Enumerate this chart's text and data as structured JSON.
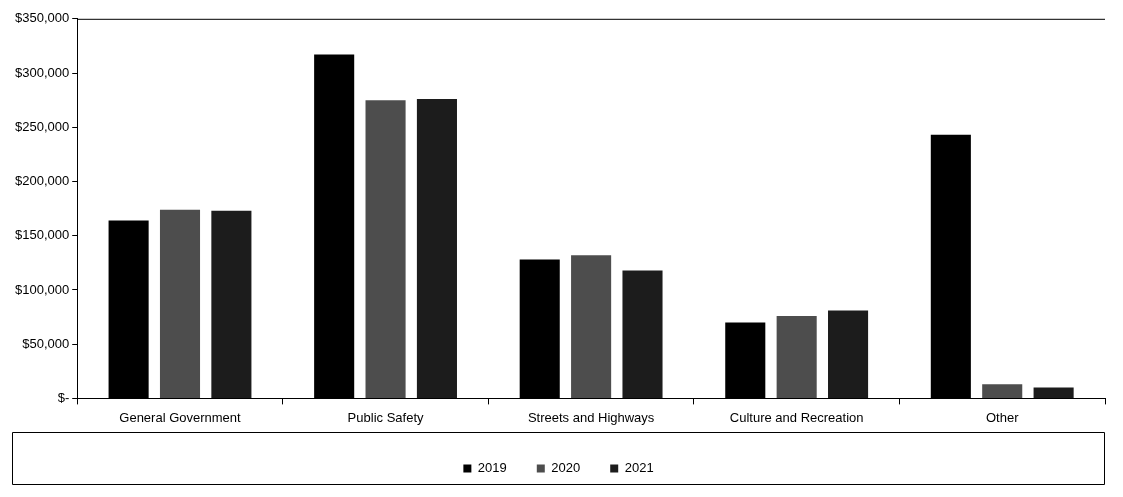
{
  "chart_data": {
    "type": "bar",
    "categories": [
      "General Government",
      "Public Safety",
      "Streets and Highways",
      "Culture and Recreation",
      "Other"
    ],
    "series": [
      {
        "name": "2019",
        "color": "#000000",
        "values": [
          164000,
          317000,
          128000,
          70000,
          243000
        ]
      },
      {
        "name": "2020",
        "color": "#4d4d4d",
        "values": [
          174000,
          275000,
          132000,
          76000,
          13000
        ]
      },
      {
        "name": "2021",
        "color": "#1c1c1c",
        "values": [
          173000,
          276000,
          118000,
          81000,
          10000
        ]
      }
    ],
    "ylim": [
      0,
      350000
    ],
    "yticks": [
      {
        "value": 0,
        "label": "$-"
      },
      {
        "value": 50000,
        "label": "$50,000"
      },
      {
        "value": 100000,
        "label": "$100,000"
      },
      {
        "value": 150000,
        "label": "$150,000"
      },
      {
        "value": 200000,
        "label": "$200,000"
      },
      {
        "value": 250000,
        "label": "$250,000"
      },
      {
        "value": 300000,
        "label": "$300,000"
      },
      {
        "value": 350000,
        "label": "$350,000"
      }
    ],
    "grid": false,
    "legend": "bottom"
  }
}
